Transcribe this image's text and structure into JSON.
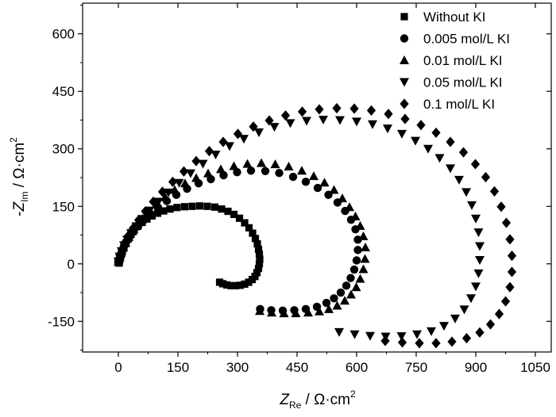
{
  "chart_data": {
    "type": "scatter",
    "xlabel": {
      "var": "Z",
      "sub": "Re",
      "unit": " / Ω·cm",
      "sup": "2"
    },
    "ylabel": {
      "prefix": "-",
      "var": "Z",
      "sub": "Im",
      "unit": " / Ω·cm",
      "sup": "2"
    },
    "xlim": [
      -90,
      1090
    ],
    "ylim": [
      -230,
      680
    ],
    "xticks": [
      0,
      150,
      300,
      450,
      600,
      750,
      900,
      1050
    ],
    "yticks": [
      -150,
      0,
      150,
      300,
      450,
      600
    ],
    "legend_position": "top-right",
    "series": [
      {
        "name": "Without KI",
        "marker": "square",
        "points": [
          [
            2,
            2
          ],
          [
            3,
            8
          ],
          [
            5,
            15
          ],
          [
            7,
            23
          ],
          [
            10,
            32
          ],
          [
            14,
            42
          ],
          [
            19,
            53
          ],
          [
            25,
            65
          ],
          [
            32,
            77
          ],
          [
            40,
            88
          ],
          [
            49,
            98
          ],
          [
            60,
            108
          ],
          [
            72,
            117
          ],
          [
            85,
            125
          ],
          [
            99,
            132
          ],
          [
            114,
            138
          ],
          [
            130,
            143
          ],
          [
            148,
            147
          ],
          [
            167,
            149
          ],
          [
            186,
            150
          ],
          [
            205,
            151
          ],
          [
            224,
            150
          ],
          [
            243,
            148
          ],
          [
            260,
            143
          ],
          [
            276,
            137
          ],
          [
            291,
            129
          ],
          [
            305,
            119
          ],
          [
            318,
            107
          ],
          [
            329,
            94
          ],
          [
            338,
            80
          ],
          [
            345,
            66
          ],
          [
            350,
            52
          ],
          [
            353,
            38
          ],
          [
            355,
            25
          ],
          [
            356,
            12
          ],
          [
            355,
            0
          ],
          [
            353,
            -12
          ],
          [
            349,
            -23
          ],
          [
            344,
            -33
          ],
          [
            337,
            -41
          ],
          [
            328,
            -48
          ],
          [
            318,
            -53
          ],
          [
            307,
            -56
          ],
          [
            295,
            -57
          ],
          [
            284,
            -57
          ],
          [
            273,
            -55
          ],
          [
            263,
            -52
          ],
          [
            255,
            -48
          ]
        ]
      },
      {
        "name": "0.005 mol/L KI",
        "marker": "circle",
        "points": [
          [
            0,
            3
          ],
          [
            2,
            12
          ],
          [
            5,
            22
          ],
          [
            9,
            33
          ],
          [
            14,
            45
          ],
          [
            20,
            57
          ],
          [
            28,
            70
          ],
          [
            38,
            84
          ],
          [
            50,
            98
          ],
          [
            64,
            114
          ],
          [
            81,
            130
          ],
          [
            100,
            147
          ],
          [
            122,
            164
          ],
          [
            146,
            180
          ],
          [
            173,
            196
          ],
          [
            202,
            210
          ],
          [
            233,
            221
          ],
          [
            265,
            231
          ],
          [
            299,
            239
          ],
          [
            334,
            243
          ],
          [
            370,
            242
          ],
          [
            405,
            237
          ],
          [
            440,
            227
          ],
          [
            472,
            214
          ],
          [
            502,
            198
          ],
          [
            529,
            180
          ],
          [
            552,
            160
          ],
          [
            571,
            138
          ],
          [
            586,
            115
          ],
          [
            597,
            90
          ],
          [
            603,
            63
          ],
          [
            603,
            36
          ],
          [
            600,
            9
          ],
          [
            594,
            -15
          ],
          [
            585,
            -37
          ],
          [
            574,
            -57
          ],
          [
            560,
            -75
          ],
          [
            543,
            -90
          ],
          [
            524,
            -102
          ],
          [
            500,
            -112
          ],
          [
            472,
            -118
          ],
          [
            443,
            -121
          ],
          [
            414,
            -122
          ],
          [
            385,
            -121
          ],
          [
            357,
            -118
          ]
        ]
      },
      {
        "name": "0.01 mol/L KI",
        "marker": "triangle-up",
        "points": [
          [
            0,
            5
          ],
          [
            3,
            16
          ],
          [
            7,
            29
          ],
          [
            12,
            42
          ],
          [
            18,
            56
          ],
          [
            26,
            70
          ],
          [
            35,
            85
          ],
          [
            47,
            101
          ],
          [
            61,
            118
          ],
          [
            77,
            136
          ],
          [
            96,
            155
          ],
          [
            118,
            174
          ],
          [
            142,
            193
          ],
          [
            168,
            210
          ],
          [
            196,
            224
          ],
          [
            226,
            236
          ],
          [
            258,
            247
          ],
          [
            291,
            255
          ],
          [
            325,
            261
          ],
          [
            360,
            263
          ],
          [
            395,
            260
          ],
          [
            429,
            254
          ],
          [
            462,
            243
          ],
          [
            492,
            229
          ],
          [
            519,
            212
          ],
          [
            543,
            193
          ],
          [
            564,
            171
          ],
          [
            582,
            148
          ],
          [
            597,
            124
          ],
          [
            609,
            99
          ],
          [
            617,
            72
          ],
          [
            622,
            43
          ],
          [
            621,
            13
          ],
          [
            617,
            -14
          ],
          [
            609,
            -39
          ],
          [
            599,
            -61
          ],
          [
            586,
            -80
          ],
          [
            570,
            -96
          ],
          [
            551,
            -109
          ],
          [
            530,
            -118
          ],
          [
            506,
            -124
          ],
          [
            478,
            -127
          ],
          [
            447,
            -129
          ],
          [
            417,
            -129
          ],
          [
            386,
            -127
          ],
          [
            356,
            -123
          ]
        ]
      },
      {
        "name": "0.05 mol/L KI",
        "marker": "triangle-down",
        "points": [
          [
            0,
            6
          ],
          [
            3,
            19
          ],
          [
            8,
            33
          ],
          [
            14,
            48
          ],
          [
            22,
            63
          ],
          [
            32,
            80
          ],
          [
            45,
            98
          ],
          [
            60,
            117
          ],
          [
            79,
            139
          ],
          [
            101,
            162
          ],
          [
            126,
            186
          ],
          [
            153,
            211
          ],
          [
            182,
            236
          ],
          [
            213,
            261
          ],
          [
            245,
            285
          ],
          [
            280,
            307
          ],
          [
            316,
            326
          ],
          [
            354,
            343
          ],
          [
            393,
            357
          ],
          [
            433,
            367
          ],
          [
            474,
            373
          ],
          [
            516,
            376
          ],
          [
            558,
            375
          ],
          [
            600,
            371
          ],
          [
            640,
            364
          ],
          [
            678,
            353
          ],
          [
            714,
            339
          ],
          [
            748,
            321
          ],
          [
            780,
            300
          ],
          [
            809,
            276
          ],
          [
            836,
            249
          ],
          [
            858,
            219
          ],
          [
            876,
            187
          ],
          [
            890,
            153
          ],
          [
            900,
            118
          ],
          [
            907,
            82
          ],
          [
            910,
            46
          ],
          [
            910,
            10
          ],
          [
            907,
            -25
          ],
          [
            900,
            -59
          ],
          [
            888,
            -90
          ],
          [
            871,
            -119
          ],
          [
            848,
            -143
          ],
          [
            820,
            -162
          ],
          [
            788,
            -176
          ],
          [
            752,
            -184
          ],
          [
            713,
            -189
          ],
          [
            673,
            -190
          ],
          [
            634,
            -188
          ],
          [
            595,
            -184
          ],
          [
            556,
            -178
          ]
        ]
      },
      {
        "name": "0.1 mol/L KI",
        "marker": "diamond",
        "points": [
          [
            0,
            8
          ],
          [
            4,
            22
          ],
          [
            9,
            38
          ],
          [
            16,
            55
          ],
          [
            25,
            73
          ],
          [
            37,
            93
          ],
          [
            51,
            114
          ],
          [
            68,
            137
          ],
          [
            88,
            162
          ],
          [
            111,
            188
          ],
          [
            137,
            214
          ],
          [
            165,
            241
          ],
          [
            196,
            268
          ],
          [
            229,
            294
          ],
          [
            264,
            318
          ],
          [
            301,
            339
          ],
          [
            340,
            358
          ],
          [
            380,
            374
          ],
          [
            421,
            387
          ],
          [
            463,
            397
          ],
          [
            506,
            403
          ],
          [
            550,
            406
          ],
          [
            594,
            405
          ],
          [
            637,
            400
          ],
          [
            680,
            391
          ],
          [
            722,
            378
          ],
          [
            762,
            362
          ],
          [
            800,
            342
          ],
          [
            836,
            318
          ],
          [
            869,
            291
          ],
          [
            899,
            260
          ],
          [
            925,
            226
          ],
          [
            947,
            189
          ],
          [
            964,
            149
          ],
          [
            977,
            107
          ],
          [
            986,
            64
          ],
          [
            991,
            21
          ],
          [
            991,
            -21
          ],
          [
            986,
            -61
          ],
          [
            975,
            -98
          ],
          [
            959,
            -131
          ],
          [
            937,
            -158
          ],
          [
            910,
            -179
          ],
          [
            877,
            -194
          ],
          [
            840,
            -203
          ],
          [
            800,
            -207
          ],
          [
            758,
            -207
          ],
          [
            715,
            -205
          ],
          [
            672,
            -201
          ]
        ]
      }
    ]
  }
}
